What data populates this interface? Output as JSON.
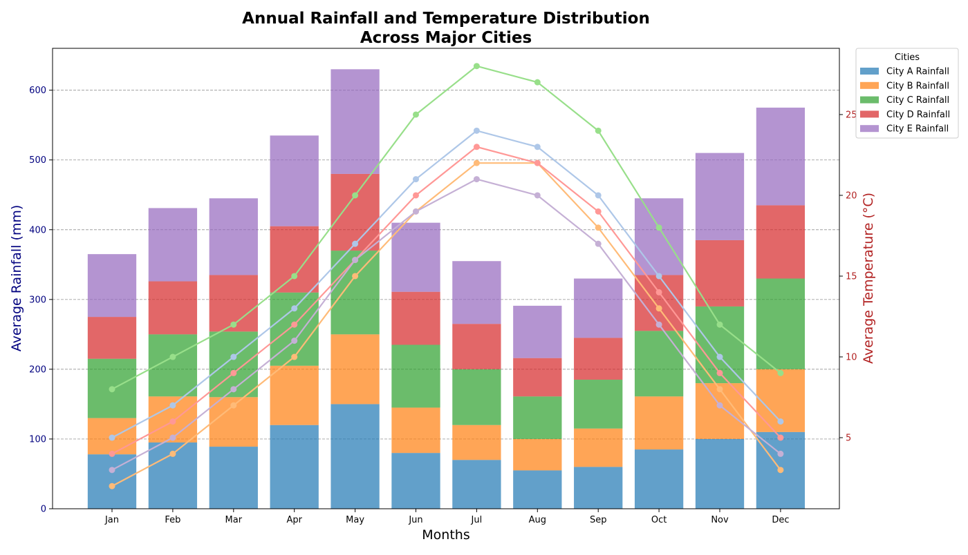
{
  "colors": {
    "left_axis": "#00007f",
    "right_axis": "#b22222",
    "bars": [
      "#1f77b4",
      "#ff7f0e",
      "#2ca02c",
      "#d62728",
      "#9467bd"
    ],
    "lines": [
      "#aec7e8",
      "#ffbb78",
      "#98df8a",
      "#ff9896",
      "#c5b0d5"
    ]
  },
  "chart_data": {
    "type": "bar",
    "title_line1": "Annual Rainfall and Temperature Distribution",
    "title_line2": "Across Major Cities",
    "xlabel": "Months",
    "ylabel": "Average Rainfall (mm)",
    "ylabel_right": "Average Temperature (°C)",
    "categories": [
      "Jan",
      "Feb",
      "Mar",
      "Apr",
      "May",
      "Jun",
      "Jul",
      "Aug",
      "Sep",
      "Oct",
      "Nov",
      "Dec"
    ],
    "ylim": [
      0,
      660
    ],
    "yticks": [
      0,
      100,
      200,
      300,
      400,
      500,
      600
    ],
    "ylim_right": [
      0.6,
      29.1
    ],
    "yticks_right": [
      5,
      10,
      15,
      20,
      25
    ],
    "grid": true,
    "legend_title": "Cities",
    "legend_placement": "upper right, outside plot",
    "series": [
      {
        "name": "City A Rainfall",
        "values": [
          78,
          95,
          89,
          120,
          150,
          80,
          70,
          55,
          60,
          85,
          100,
          110
        ]
      },
      {
        "name": "City B Rainfall",
        "values": [
          52,
          66,
          71,
          85,
          100,
          65,
          50,
          45,
          55,
          76,
          80,
          90
        ]
      },
      {
        "name": "City C Rainfall",
        "values": [
          85,
          89,
          94,
          105,
          120,
          90,
          80,
          61,
          70,
          94,
          110,
          130
        ]
      },
      {
        "name": "City D Rainfall",
        "values": [
          60,
          76,
          81,
          95,
          110,
          76,
          65,
          55,
          60,
          80,
          95,
          105
        ]
      },
      {
        "name": "City E Rainfall",
        "values": [
          90,
          105,
          110,
          130,
          150,
          99,
          90,
          75,
          85,
          110,
          125,
          140
        ]
      }
    ],
    "temperature_series": [
      {
        "values": [
          5,
          7,
          10,
          13,
          17,
          21,
          24,
          23,
          20,
          15,
          10,
          6
        ]
      },
      {
        "values": [
          2,
          4,
          7,
          10,
          15,
          19,
          22,
          22,
          18,
          13,
          8,
          3
        ]
      },
      {
        "values": [
          8,
          10,
          12,
          15,
          20,
          25,
          28,
          27,
          24,
          18,
          12,
          9
        ]
      },
      {
        "values": [
          4,
          6,
          9,
          12,
          16,
          20,
          23,
          22,
          19,
          14,
          9,
          5
        ]
      },
      {
        "values": [
          3,
          5,
          8,
          11,
          16,
          19,
          21,
          20,
          17,
          12,
          7,
          4
        ]
      }
    ]
  }
}
